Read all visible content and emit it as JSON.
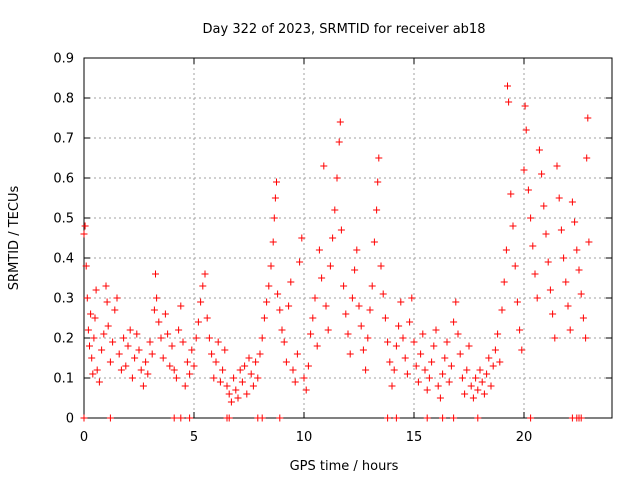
{
  "chart_data": {
    "type": "scatter",
    "title": "Day 322 of 2023, SRMTID for receiver ab18",
    "xlabel": "GPS time / hours",
    "ylabel": "SRMTID / TECUs",
    "xlim": [
      0,
      24
    ],
    "ylim": [
      0,
      0.9
    ],
    "xticks": [
      0,
      5,
      10,
      15,
      20
    ],
    "yticks": [
      0,
      0.1,
      0.2,
      0.3,
      0.4,
      0.5,
      0.6,
      0.7,
      0.8,
      0.9
    ],
    "ytick_labels": [
      "0",
      "0.1",
      "0.2",
      "0.3",
      "0.4",
      "0.5",
      "0.6",
      "0.7",
      "0.8",
      "0.9"
    ],
    "grid": true,
    "marker": "+",
    "color": "#ff0000",
    "series": [
      {
        "name": "SRMTID",
        "points": [
          [
            0.0,
            0.46
          ],
          [
            0.05,
            0.48
          ],
          [
            0.1,
            0.38
          ],
          [
            0.15,
            0.3
          ],
          [
            0.2,
            0.22
          ],
          [
            0.25,
            0.18
          ],
          [
            0.3,
            0.26
          ],
          [
            0.35,
            0.15
          ],
          [
            0.4,
            0.11
          ],
          [
            0.45,
            0.2
          ],
          [
            0.5,
            0.25
          ],
          [
            0.55,
            0.32
          ],
          [
            0.6,
            0.12
          ],
          [
            0.7,
            0.09
          ],
          [
            0.8,
            0.17
          ],
          [
            0.9,
            0.21
          ],
          [
            1.0,
            0.33
          ],
          [
            1.05,
            0.29
          ],
          [
            1.1,
            0.23
          ],
          [
            1.2,
            0.14
          ],
          [
            1.3,
            0.19
          ],
          [
            1.4,
            0.27
          ],
          [
            1.5,
            0.3
          ],
          [
            1.6,
            0.16
          ],
          [
            1.7,
            0.12
          ],
          [
            1.8,
            0.2
          ],
          [
            1.9,
            0.13
          ],
          [
            2.0,
            0.18
          ],
          [
            2.1,
            0.22
          ],
          [
            2.2,
            0.1
          ],
          [
            2.3,
            0.15
          ],
          [
            2.4,
            0.21
          ],
          [
            2.5,
            0.17
          ],
          [
            2.6,
            0.12
          ],
          [
            2.7,
            0.08
          ],
          [
            2.8,
            0.14
          ],
          [
            2.9,
            0.11
          ],
          [
            3.0,
            0.19
          ],
          [
            3.1,
            0.16
          ],
          [
            3.2,
            0.27
          ],
          [
            3.25,
            0.36
          ],
          [
            3.3,
            0.3
          ],
          [
            3.4,
            0.24
          ],
          [
            3.5,
            0.2
          ],
          [
            3.6,
            0.15
          ],
          [
            3.7,
            0.26
          ],
          [
            3.8,
            0.21
          ],
          [
            3.9,
            0.13
          ],
          [
            4.0,
            0.18
          ],
          [
            4.1,
            0.12
          ],
          [
            4.2,
            0.1
          ],
          [
            4.3,
            0.22
          ],
          [
            4.4,
            0.28
          ],
          [
            4.5,
            0.19
          ],
          [
            4.6,
            0.08
          ],
          [
            4.7,
            0.14
          ],
          [
            4.8,
            0.11
          ],
          [
            4.9,
            0.17
          ],
          [
            5.0,
            0.13
          ],
          [
            5.1,
            0.2
          ],
          [
            5.2,
            0.24
          ],
          [
            5.3,
            0.29
          ],
          [
            5.4,
            0.33
          ],
          [
            5.5,
            0.36
          ],
          [
            5.6,
            0.25
          ],
          [
            5.7,
            0.2
          ],
          [
            5.8,
            0.16
          ],
          [
            5.9,
            0.1
          ],
          [
            6.0,
            0.14
          ],
          [
            6.1,
            0.19
          ],
          [
            6.2,
            0.09
          ],
          [
            6.3,
            0.12
          ],
          [
            6.4,
            0.17
          ],
          [
            6.5,
            0.08
          ],
          [
            6.6,
            0.06
          ],
          [
            6.7,
            0.04
          ],
          [
            6.8,
            0.1
          ],
          [
            6.9,
            0.07
          ],
          [
            7.0,
            0.05
          ],
          [
            7.1,
            0.12
          ],
          [
            7.2,
            0.09
          ],
          [
            7.3,
            0.13
          ],
          [
            7.4,
            0.06
          ],
          [
            7.5,
            0.15
          ],
          [
            7.6,
            0.11
          ],
          [
            7.7,
            0.08
          ],
          [
            7.8,
            0.14
          ],
          [
            7.9,
            0.1
          ],
          [
            8.0,
            0.16
          ],
          [
            8.1,
            0.2
          ],
          [
            8.2,
            0.25
          ],
          [
            8.3,
            0.29
          ],
          [
            8.4,
            0.33
          ],
          [
            8.5,
            0.38
          ],
          [
            8.6,
            0.44
          ],
          [
            8.65,
            0.5
          ],
          [
            8.7,
            0.55
          ],
          [
            8.75,
            0.59
          ],
          [
            8.8,
            0.31
          ],
          [
            8.9,
            0.27
          ],
          [
            9.0,
            0.22
          ],
          [
            9.1,
            0.19
          ],
          [
            9.2,
            0.14
          ],
          [
            9.3,
            0.28
          ],
          [
            9.4,
            0.34
          ],
          [
            9.5,
            0.12
          ],
          [
            9.6,
            0.09
          ],
          [
            9.7,
            0.16
          ],
          [
            9.8,
            0.39
          ],
          [
            9.9,
            0.45
          ],
          [
            10.0,
            0.1
          ],
          [
            10.1,
            0.07
          ],
          [
            10.2,
            0.13
          ],
          [
            10.3,
            0.21
          ],
          [
            10.4,
            0.25
          ],
          [
            10.5,
            0.3
          ],
          [
            10.6,
            0.18
          ],
          [
            10.7,
            0.42
          ],
          [
            10.8,
            0.35
          ],
          [
            10.9,
            0.63
          ],
          [
            11.0,
            0.28
          ],
          [
            11.1,
            0.22
          ],
          [
            11.2,
            0.38
          ],
          [
            11.3,
            0.45
          ],
          [
            11.4,
            0.52
          ],
          [
            11.5,
            0.6
          ],
          [
            11.6,
            0.69
          ],
          [
            11.65,
            0.74
          ],
          [
            11.7,
            0.47
          ],
          [
            11.8,
            0.33
          ],
          [
            11.9,
            0.26
          ],
          [
            12.0,
            0.21
          ],
          [
            12.1,
            0.16
          ],
          [
            12.2,
            0.3
          ],
          [
            12.3,
            0.37
          ],
          [
            12.4,
            0.42
          ],
          [
            12.5,
            0.28
          ],
          [
            12.6,
            0.23
          ],
          [
            12.7,
            0.17
          ],
          [
            12.8,
            0.12
          ],
          [
            12.9,
            0.2
          ],
          [
            13.0,
            0.27
          ],
          [
            13.1,
            0.33
          ],
          [
            13.2,
            0.44
          ],
          [
            13.3,
            0.52
          ],
          [
            13.35,
            0.59
          ],
          [
            13.4,
            0.65
          ],
          [
            13.5,
            0.38
          ],
          [
            13.6,
            0.31
          ],
          [
            13.7,
            0.25
          ],
          [
            13.8,
            0.19
          ],
          [
            13.9,
            0.14
          ],
          [
            14.0,
            0.08
          ],
          [
            14.1,
            0.12
          ],
          [
            14.2,
            0.18
          ],
          [
            14.3,
            0.23
          ],
          [
            14.4,
            0.29
          ],
          [
            14.5,
            0.2
          ],
          [
            14.6,
            0.15
          ],
          [
            14.7,
            0.11
          ],
          [
            14.8,
            0.24
          ],
          [
            14.9,
            0.3
          ],
          [
            15.0,
            0.19
          ],
          [
            15.1,
            0.13
          ],
          [
            15.2,
            0.09
          ],
          [
            15.3,
            0.16
          ],
          [
            15.4,
            0.21
          ],
          [
            15.5,
            0.12
          ],
          [
            15.6,
            0.07
          ],
          [
            15.7,
            0.1
          ],
          [
            15.8,
            0.14
          ],
          [
            15.9,
            0.18
          ],
          [
            16.0,
            0.22
          ],
          [
            16.1,
            0.08
          ],
          [
            16.2,
            0.05
          ],
          [
            16.3,
            0.11
          ],
          [
            16.4,
            0.15
          ],
          [
            16.5,
            0.19
          ],
          [
            16.6,
            0.09
          ],
          [
            16.7,
            0.13
          ],
          [
            16.8,
            0.24
          ],
          [
            16.9,
            0.29
          ],
          [
            17.0,
            0.21
          ],
          [
            17.1,
            0.16
          ],
          [
            17.2,
            0.1
          ],
          [
            17.3,
            0.06
          ],
          [
            17.4,
            0.12
          ],
          [
            17.5,
            0.18
          ],
          [
            17.6,
            0.08
          ],
          [
            17.7,
            0.05
          ],
          [
            17.8,
            0.1
          ],
          [
            17.9,
            0.07
          ],
          [
            18.0,
            0.12
          ],
          [
            18.1,
            0.09
          ],
          [
            18.2,
            0.06
          ],
          [
            18.3,
            0.11
          ],
          [
            18.4,
            0.15
          ],
          [
            18.5,
            0.08
          ],
          [
            18.6,
            0.13
          ],
          [
            18.7,
            0.17
          ],
          [
            18.8,
            0.21
          ],
          [
            18.9,
            0.14
          ],
          [
            19.0,
            0.27
          ],
          [
            19.1,
            0.34
          ],
          [
            19.2,
            0.42
          ],
          [
            19.25,
            0.83
          ],
          [
            19.3,
            0.79
          ],
          [
            19.4,
            0.56
          ],
          [
            19.5,
            0.48
          ],
          [
            19.6,
            0.38
          ],
          [
            19.7,
            0.29
          ],
          [
            19.8,
            0.22
          ],
          [
            19.9,
            0.17
          ],
          [
            20.0,
            0.62
          ],
          [
            20.05,
            0.78
          ],
          [
            20.1,
            0.72
          ],
          [
            20.2,
            0.57
          ],
          [
            20.3,
            0.5
          ],
          [
            20.4,
            0.43
          ],
          [
            20.5,
            0.36
          ],
          [
            20.6,
            0.3
          ],
          [
            20.7,
            0.67
          ],
          [
            20.8,
            0.61
          ],
          [
            20.9,
            0.53
          ],
          [
            21.0,
            0.46
          ],
          [
            21.1,
            0.39
          ],
          [
            21.2,
            0.32
          ],
          [
            21.3,
            0.26
          ],
          [
            21.4,
            0.2
          ],
          [
            21.5,
            0.63
          ],
          [
            21.6,
            0.55
          ],
          [
            21.7,
            0.47
          ],
          [
            21.8,
            0.4
          ],
          [
            21.9,
            0.34
          ],
          [
            22.0,
            0.28
          ],
          [
            22.1,
            0.22
          ],
          [
            22.2,
            0.54
          ],
          [
            22.3,
            0.49
          ],
          [
            22.4,
            0.42
          ],
          [
            22.5,
            0.37
          ],
          [
            22.6,
            0.31
          ],
          [
            22.7,
            0.25
          ],
          [
            22.8,
            0.2
          ],
          [
            22.85,
            0.65
          ],
          [
            22.9,
            0.75
          ],
          [
            22.95,
            0.44
          ]
        ]
      }
    ],
    "zero_points_hours": [
      0.0,
      1.2,
      4.1,
      4.4,
      4.8,
      6.5,
      6.6,
      7.9,
      8.1,
      8.9,
      13.8,
      14.2,
      15.6,
      16.3,
      16.8,
      17.9,
      20.3,
      22.2,
      22.4,
      22.5,
      22.6
    ]
  }
}
